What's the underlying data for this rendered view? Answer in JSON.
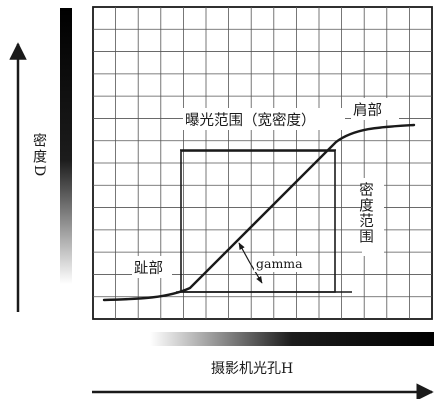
{
  "labels": {
    "exposure_range": "曝光范围（宽密度）",
    "shoulder": "肩部",
    "toe": "趾部",
    "gamma": "gamma",
    "density_range": "密度范围",
    "y_axis": "密度D",
    "x_axis": "摄影机光孔H"
  },
  "colors": {
    "ink": "#1a1a1a",
    "grid": "#555555",
    "gradient_dark": "#000000",
    "gradient_light": "#ffffff"
  }
}
